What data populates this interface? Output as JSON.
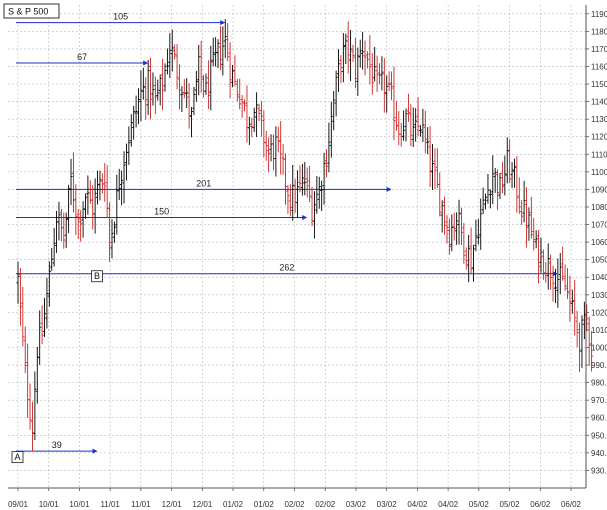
{
  "chart_data": {
    "type": "bar",
    "subtype": "ohlc",
    "title": "S & P 500",
    "xlabel": "",
    "ylabel": "",
    "ylim": [
      920,
      1195
    ],
    "grid": true,
    "colors": {
      "up": "#000000",
      "down": "#cc2222",
      "annotation": "#1a2fd0",
      "grid": "#b8b8b8"
    },
    "x_tick_labels": [
      "09/01",
      "10/01",
      "10/01",
      "11/01",
      "11/01",
      "12/01",
      "12/01",
      "01/02",
      "01/02",
      "02/02",
      "02/02",
      "03/02",
      "03/02",
      "04/02",
      "04/02",
      "05/02",
      "05/02",
      "06/02",
      "06/02"
    ],
    "y_ticks": [
      930,
      940,
      950,
      960,
      970,
      980,
      990,
      1000,
      1010,
      1020,
      1030,
      1040,
      1050,
      1060,
      1070,
      1080,
      1090,
      1100,
      1110,
      1120,
      1130,
      1140,
      1150,
      1160,
      1170,
      1180,
      1190
    ],
    "y_tick_format": "2dp",
    "close_path": [
      [
        0,
        1038
      ],
      [
        3,
        985
      ],
      [
        6,
        955
      ],
      [
        8,
        1000
      ],
      [
        10,
        1008
      ],
      [
        13,
        1040
      ],
      [
        16,
        1075
      ],
      [
        19,
        1062
      ],
      [
        22,
        1095
      ],
      [
        25,
        1072
      ],
      [
        28,
        1087
      ],
      [
        31,
        1080
      ],
      [
        33,
        1090
      ],
      [
        36,
        1098
      ],
      [
        38,
        1060
      ],
      [
        40,
        1075
      ],
      [
        42,
        1095
      ],
      [
        45,
        1115
      ],
      [
        48,
        1130
      ],
      [
        51,
        1145
      ],
      [
        54,
        1150
      ],
      [
        57,
        1140
      ],
      [
        60,
        1150
      ],
      [
        63,
        1172
      ],
      [
        66,
        1158
      ],
      [
        69,
        1145
      ],
      [
        72,
        1130
      ],
      [
        75,
        1158
      ],
      [
        78,
        1145
      ],
      [
        81,
        1160
      ],
      [
        84,
        1170
      ],
      [
        86,
        1175
      ],
      [
        88,
        1160
      ],
      [
        90,
        1150
      ],
      [
        92,
        1145
      ],
      [
        95,
        1130
      ],
      [
        98,
        1135
      ],
      [
        101,
        1125
      ],
      [
        104,
        1110
      ],
      [
        107,
        1115
      ],
      [
        110,
        1100
      ],
      [
        113,
        1085
      ],
      [
        116,
        1088
      ],
      [
        119,
        1095
      ],
      [
        122,
        1080
      ],
      [
        125,
        1090
      ],
      [
        128,
        1110
      ],
      [
        131,
        1140
      ],
      [
        134,
        1165
      ],
      [
        137,
        1170
      ],
      [
        140,
        1158
      ],
      [
        143,
        1172
      ],
      [
        146,
        1160
      ],
      [
        149,
        1148
      ],
      [
        152,
        1150
      ],
      [
        155,
        1140
      ],
      [
        158,
        1125
      ],
      [
        161,
        1130
      ],
      [
        164,
        1120
      ],
      [
        167,
        1128
      ],
      [
        170,
        1110
      ],
      [
        173,
        1095
      ],
      [
        176,
        1080
      ],
      [
        179,
        1065
      ],
      [
        182,
        1075
      ],
      [
        185,
        1060
      ],
      [
        188,
        1050
      ],
      [
        191,
        1070
      ],
      [
        194,
        1085
      ],
      [
        197,
        1100
      ],
      [
        200,
        1090
      ],
      [
        203,
        1105
      ],
      [
        206,
        1095
      ],
      [
        209,
        1080
      ],
      [
        212,
        1070
      ],
      [
        215,
        1055
      ],
      [
        218,
        1050
      ],
      [
        221,
        1045
      ],
      [
        224,
        1040
      ],
      [
        227,
        1035
      ],
      [
        230,
        1020
      ],
      [
        233,
        1005
      ],
      [
        236,
        1015
      ],
      [
        238,
        1000
      ]
    ],
    "annotations": [
      {
        "label": "105",
        "x_start": 0,
        "x_end": 86,
        "y": 1185
      },
      {
        "label": "67",
        "x_start": 0,
        "x_end": 54,
        "y": 1162
      },
      {
        "label": "201",
        "x_start": 0,
        "x_end": 155,
        "y": 1090
      },
      {
        "label": "150",
        "x_start": 0,
        "x_end": 120,
        "y": 1074
      },
      {
        "label": "262",
        "x_start": 0,
        "x_end": 224,
        "y": 1042
      },
      {
        "label": "39",
        "x_start": 0,
        "x_end": 33,
        "y": 941
      }
    ],
    "point_markers": [
      {
        "label": "A",
        "x": 0,
        "y": 943
      },
      {
        "label": "B",
        "x": 33,
        "y": 1046
      }
    ]
  }
}
